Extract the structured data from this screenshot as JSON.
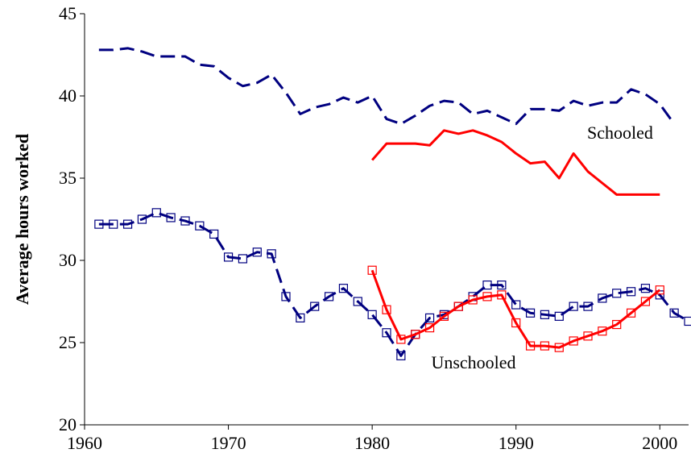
{
  "chart_data": {
    "type": "line",
    "y_label": "Average hours worked",
    "annotations": [
      "Schooled",
      "Unschooled"
    ],
    "xlim": [
      1960,
      2002
    ],
    "xticks": [
      1960,
      1970,
      1980,
      1990,
      2000
    ],
    "ylim": [
      20,
      45
    ],
    "yticks": [
      20,
      25,
      30,
      35,
      40,
      45
    ],
    "grid": false,
    "series": [
      {
        "color": "#000080",
        "dashed": true,
        "marker": null,
        "x": [
          1961,
          1962,
          1963,
          1964,
          1965,
          1966,
          1967,
          1968,
          1969,
          1970,
          1971,
          1972,
          1973,
          1974,
          1975,
          1976,
          1977,
          1978,
          1979,
          1980,
          1981,
          1982,
          1983,
          1984,
          1985,
          1986,
          1987,
          1988,
          1989,
          1990,
          1991,
          1992,
          1993,
          1994,
          1995,
          1996,
          1997,
          1998,
          1999,
          2000,
          2001
        ],
        "values": [
          42.8,
          42.8,
          42.9,
          42.7,
          42.4,
          42.4,
          42.4,
          41.9,
          41.8,
          41.1,
          40.6,
          40.8,
          41.3,
          40.2,
          38.9,
          39.3,
          39.5,
          39.9,
          39.6,
          40.0,
          38.6,
          38.3,
          38.8,
          39.4,
          39.7,
          39.6,
          38.9,
          39.1,
          38.7,
          38.3,
          39.2,
          39.2,
          39.1,
          39.7,
          39.4,
          39.6,
          39.6,
          40.4,
          40.1,
          39.5,
          38.3
        ]
      },
      {
        "color": "#ff0000",
        "dashed": false,
        "marker": null,
        "x": [
          1980,
          1981,
          1982,
          1983,
          1984,
          1985,
          1986,
          1987,
          1988,
          1989,
          1990,
          1991,
          1992,
          1993,
          1994,
          1995,
          1996,
          1997,
          1998,
          1999,
          2000
        ],
        "values": [
          36.1,
          37.1,
          37.1,
          37.1,
          37.0,
          37.9,
          37.7,
          37.9,
          37.6,
          37.2,
          36.5,
          35.9,
          36.0,
          35.0,
          36.5,
          35.4,
          34.7,
          34.0,
          34.0,
          34.0,
          34.0
        ]
      },
      {
        "color": "#000080",
        "dashed": true,
        "marker": "square",
        "x": [
          1961,
          1962,
          1963,
          1964,
          1965,
          1966,
          1967,
          1968,
          1969,
          1970,
          1971,
          1972,
          1973,
          1974,
          1975,
          1976,
          1977,
          1978,
          1979,
          1980,
          1981,
          1982,
          1983,
          1984,
          1985,
          1986,
          1987,
          1988,
          1989,
          1990,
          1991,
          1992,
          1993,
          1994,
          1995,
          1996,
          1997,
          1998,
          1999,
          2000,
          2001,
          2002
        ],
        "values": [
          32.2,
          32.2,
          32.2,
          32.5,
          32.9,
          32.6,
          32.4,
          32.1,
          31.6,
          30.2,
          30.1,
          30.5,
          30.4,
          27.8,
          26.5,
          27.2,
          27.8,
          28.3,
          27.5,
          26.7,
          25.6,
          24.2,
          25.5,
          26.5,
          26.7,
          27.2,
          27.8,
          28.5,
          28.5,
          27.3,
          26.8,
          26.7,
          26.6,
          27.2,
          27.2,
          27.7,
          28.0,
          28.1,
          28.3,
          27.9,
          26.8,
          26.3
        ]
      },
      {
        "color": "#ff0000",
        "dashed": false,
        "marker": "square",
        "x": [
          1980,
          1981,
          1982,
          1983,
          1984,
          1985,
          1986,
          1987,
          1988,
          1989,
          1990,
          1991,
          1992,
          1993,
          1994,
          1995,
          1996,
          1997,
          1998,
          1999,
          2000
        ],
        "values": [
          29.4,
          27.0,
          25.2,
          25.5,
          25.9,
          26.6,
          27.2,
          27.6,
          27.8,
          27.9,
          26.2,
          24.8,
          24.8,
          24.7,
          25.1,
          25.4,
          25.7,
          26.1,
          26.8,
          27.5,
          28.2
        ]
      }
    ]
  }
}
